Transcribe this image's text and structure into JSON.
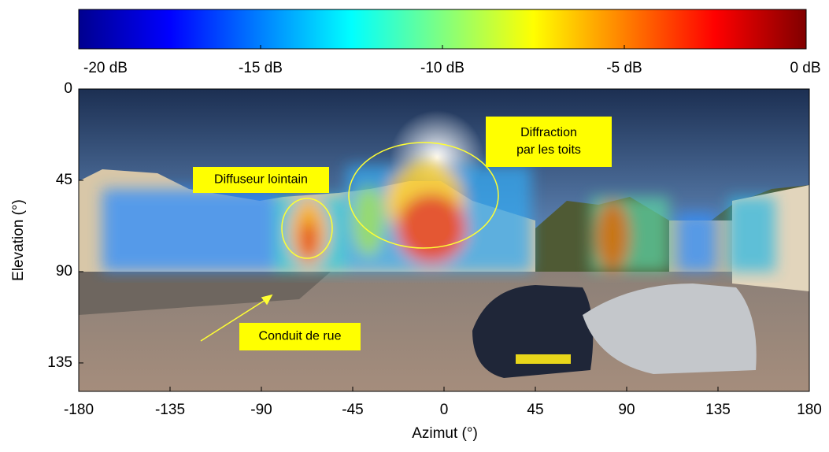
{
  "chart_data": {
    "type": "heatmap",
    "x_label": "Azimut (°)",
    "y_label": "Elevation (°)",
    "xlim": [
      -180,
      180
    ],
    "xticks": [
      -180,
      -135,
      -90,
      -45,
      0,
      45,
      90,
      135,
      180
    ],
    "ylim": [
      0,
      149
    ],
    "yticks": [
      0,
      45,
      90,
      135
    ],
    "y_inverted": true,
    "colormap": "jet",
    "clim": [
      -20,
      0
    ],
    "colorbar_ticks": [
      {
        "value": -20,
        "label": "-20 dB"
      },
      {
        "value": -15,
        "label": "-15 dB"
      },
      {
        "value": -10,
        "label": "-10 dB"
      },
      {
        "value": -5,
        "label": "-5 dB"
      },
      {
        "value": 0,
        "label": "0 dB"
      }
    ],
    "annotations": [
      "Diffuseur lointain",
      "Diffraction\npar les toits",
      "Conduit de rue"
    ]
  }
}
